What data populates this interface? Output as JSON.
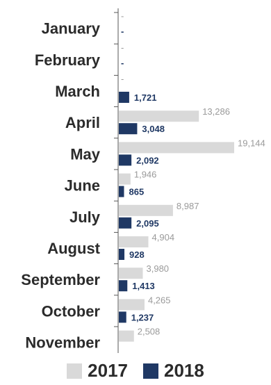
{
  "chart_data": {
    "type": "bar",
    "orientation": "horizontal",
    "categories": [
      "January",
      "February",
      "March",
      "April",
      "May",
      "June",
      "July",
      "August",
      "September",
      "October",
      "November"
    ],
    "series": [
      {
        "name": "2017",
        "color": "#d9d9d9",
        "values": [
          null,
          null,
          null,
          13286,
          19144,
          1946,
          8987,
          4904,
          3980,
          4265,
          2508
        ],
        "labels": [
          "-",
          "-",
          "-",
          "13,286",
          "19,144",
          "1,946",
          "8,987",
          "4,904",
          "3,980",
          "4,265",
          "2,508"
        ]
      },
      {
        "name": "2018",
        "color": "#1f3864",
        "values": [
          null,
          null,
          1721,
          3048,
          2092,
          865,
          2095,
          928,
          1413,
          1237,
          null
        ],
        "labels": [
          "-",
          "-",
          "1,721",
          "3,048",
          "2,092",
          "865",
          "2,095",
          "928",
          "1,413",
          "1,237",
          ""
        ]
      }
    ],
    "xlim": [
      0,
      19144
    ],
    "grid": false,
    "legend_position": "bottom"
  }
}
